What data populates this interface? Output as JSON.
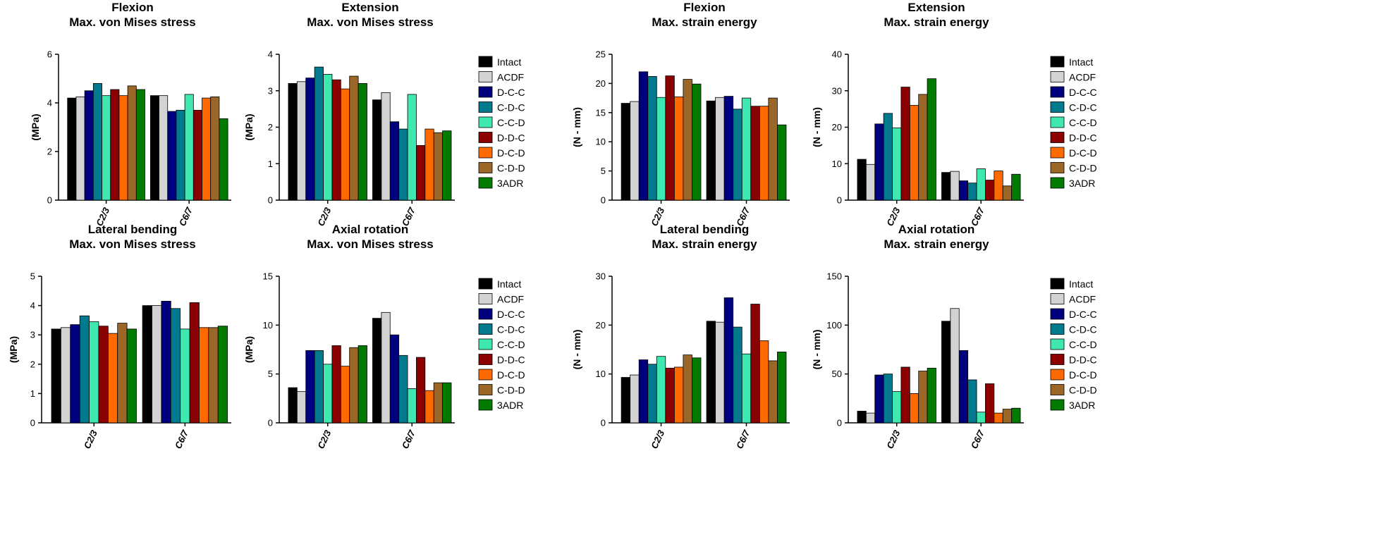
{
  "chart_data": [
    {
      "type": "bar",
      "title": "Flexion",
      "subtitle": "Max. von Mises stress",
      "ylabel": "(MPa)",
      "ylim": [
        0,
        6
      ],
      "yticks": [
        0,
        2,
        4,
        6
      ],
      "categories": [
        "C2/3",
        "C6/7"
      ],
      "legend": "none",
      "series": [
        {
          "name": "Intact",
          "values": [
            4.2,
            4.3
          ]
        },
        {
          "name": "ACDF",
          "values": [
            4.25,
            4.3
          ]
        },
        {
          "name": "D-C-C",
          "values": [
            4.5,
            3.65
          ]
        },
        {
          "name": "C-D-C",
          "values": [
            4.8,
            3.7
          ]
        },
        {
          "name": "C-C-D",
          "values": [
            4.3,
            4.35
          ]
        },
        {
          "name": "D-D-C",
          "values": [
            4.55,
            3.7
          ]
        },
        {
          "name": "D-C-D",
          "values": [
            4.3,
            4.2
          ]
        },
        {
          "name": "C-D-D",
          "values": [
            4.7,
            4.25
          ]
        },
        {
          "name": "3ADR",
          "values": [
            4.55,
            3.35
          ]
        }
      ]
    },
    {
      "type": "bar",
      "title": "Extension",
      "subtitle": "Max. von Mises stress",
      "ylabel": "(MPa)",
      "ylim": [
        0,
        4
      ],
      "yticks": [
        0,
        1,
        2,
        3,
        4
      ],
      "categories": [
        "C2/3",
        "C6/7"
      ],
      "legend": "right",
      "series": [
        {
          "name": "Intact",
          "values": [
            3.2,
            2.75
          ]
        },
        {
          "name": "ACDF",
          "values": [
            3.25,
            2.95
          ]
        },
        {
          "name": "D-C-C",
          "values": [
            3.35,
            2.15
          ]
        },
        {
          "name": "C-D-C",
          "values": [
            3.65,
            1.95
          ]
        },
        {
          "name": "C-C-D",
          "values": [
            3.45,
            2.9
          ]
        },
        {
          "name": "D-D-C",
          "values": [
            3.3,
            1.5
          ]
        },
        {
          "name": "D-C-D",
          "values": [
            3.05,
            1.95
          ]
        },
        {
          "name": "C-D-D",
          "values": [
            3.4,
            1.85
          ]
        },
        {
          "name": "3ADR",
          "values": [
            3.2,
            1.9
          ]
        }
      ]
    },
    {
      "type": "bar",
      "title": "Flexion",
      "subtitle": "Max. strain energy",
      "ylabel": "(N - mm)",
      "ylim": [
        0,
        25
      ],
      "yticks": [
        0,
        5,
        10,
        15,
        20,
        25
      ],
      "categories": [
        "C2/3",
        "C6/7"
      ],
      "legend": "none",
      "series": [
        {
          "name": "Intact",
          "values": [
            16.6,
            17.0
          ]
        },
        {
          "name": "ACDF",
          "values": [
            16.9,
            17.6
          ]
        },
        {
          "name": "D-C-C",
          "values": [
            22.0,
            17.8
          ]
        },
        {
          "name": "C-D-C",
          "values": [
            21.2,
            15.6
          ]
        },
        {
          "name": "C-C-D",
          "values": [
            17.6,
            17.5
          ]
        },
        {
          "name": "D-D-C",
          "values": [
            21.3,
            16.1
          ]
        },
        {
          "name": "D-C-D",
          "values": [
            17.7,
            16.1
          ]
        },
        {
          "name": "C-D-D",
          "values": [
            20.7,
            17.5
          ]
        },
        {
          "name": "3ADR",
          "values": [
            19.9,
            12.9
          ]
        }
      ]
    },
    {
      "type": "bar",
      "title": "Extension",
      "subtitle": "Max. strain energy",
      "ylabel": "(N - mm)",
      "ylim": [
        0,
        40
      ],
      "yticks": [
        0,
        10,
        20,
        30,
        40
      ],
      "categories": [
        "C2/3",
        "C6/7"
      ],
      "legend": "right",
      "series": [
        {
          "name": "Intact",
          "values": [
            11.2,
            7.6
          ]
        },
        {
          "name": "ACDF",
          "values": [
            9.8,
            7.9
          ]
        },
        {
          "name": "D-C-C",
          "values": [
            20.9,
            5.3
          ]
        },
        {
          "name": "C-D-C",
          "values": [
            23.8,
            4.7
          ]
        },
        {
          "name": "C-C-D",
          "values": [
            19.8,
            8.6
          ]
        },
        {
          "name": "D-D-C",
          "values": [
            31.0,
            5.5
          ]
        },
        {
          "name": "D-C-D",
          "values": [
            26.0,
            8.0
          ]
        },
        {
          "name": "C-D-D",
          "values": [
            29.0,
            3.9
          ]
        },
        {
          "name": "3ADR",
          "values": [
            33.3,
            7.1
          ]
        }
      ]
    },
    {
      "type": "bar",
      "title": "Lateral bending",
      "subtitle": "Max. von Mises stress",
      "ylabel": "(MPa)",
      "ylim": [
        0,
        5
      ],
      "yticks": [
        0,
        1,
        2,
        3,
        4,
        5
      ],
      "categories": [
        "C2/3",
        "C6/7"
      ],
      "legend": "none",
      "series": [
        {
          "name": "Intact",
          "values": [
            3.2,
            4.0
          ]
        },
        {
          "name": "ACDF",
          "values": [
            3.25,
            4.0
          ]
        },
        {
          "name": "D-C-C",
          "values": [
            3.35,
            4.15
          ]
        },
        {
          "name": "C-D-C",
          "values": [
            3.65,
            3.9
          ]
        },
        {
          "name": "C-C-D",
          "values": [
            3.45,
            3.2
          ]
        },
        {
          "name": "D-D-C",
          "values": [
            3.3,
            4.1
          ]
        },
        {
          "name": "D-C-D",
          "values": [
            3.05,
            3.25
          ]
        },
        {
          "name": "C-D-D",
          "values": [
            3.4,
            3.25
          ]
        },
        {
          "name": "3ADR",
          "values": [
            3.2,
            3.3
          ]
        }
      ]
    },
    {
      "type": "bar",
      "title": "Axial rotation",
      "subtitle": "Max. von Mises stress",
      "ylabel": "(MPa)",
      "ylim": [
        0,
        15
      ],
      "yticks": [
        0,
        5,
        10,
        15
      ],
      "categories": [
        "C2/3",
        "C6/7"
      ],
      "legend": "right",
      "series": [
        {
          "name": "Intact",
          "values": [
            3.6,
            10.7
          ]
        },
        {
          "name": "ACDF",
          "values": [
            3.2,
            11.3
          ]
        },
        {
          "name": "D-C-C",
          "values": [
            7.4,
            9.0
          ]
        },
        {
          "name": "C-D-C",
          "values": [
            7.4,
            6.9
          ]
        },
        {
          "name": "C-C-D",
          "values": [
            6.0,
            3.5
          ]
        },
        {
          "name": "D-D-C",
          "values": [
            7.9,
            6.7
          ]
        },
        {
          "name": "D-C-D",
          "values": [
            5.8,
            3.3
          ]
        },
        {
          "name": "C-D-D",
          "values": [
            7.7,
            4.1
          ]
        },
        {
          "name": "3ADR",
          "values": [
            7.9,
            4.1
          ]
        }
      ]
    },
    {
      "type": "bar",
      "title": "Lateral bending",
      "subtitle": "Max. strain energy",
      "ylabel": "(N - mm)",
      "ylim": [
        0,
        30
      ],
      "yticks": [
        0,
        10,
        20,
        30
      ],
      "categories": [
        "C2/3",
        "C6/7"
      ],
      "legend": "none",
      "series": [
        {
          "name": "Intact",
          "values": [
            9.3,
            20.8
          ]
        },
        {
          "name": "ACDF",
          "values": [
            9.8,
            20.6
          ]
        },
        {
          "name": "D-C-C",
          "values": [
            12.9,
            25.6
          ]
        },
        {
          "name": "C-D-C",
          "values": [
            12.0,
            19.6
          ]
        },
        {
          "name": "C-C-D",
          "values": [
            13.6,
            14.1
          ]
        },
        {
          "name": "D-D-C",
          "values": [
            11.2,
            24.3
          ]
        },
        {
          "name": "D-C-D",
          "values": [
            11.4,
            16.8
          ]
        },
        {
          "name": "C-D-D",
          "values": [
            13.9,
            12.7
          ]
        },
        {
          "name": "3ADR",
          "values": [
            13.3,
            14.5
          ]
        }
      ]
    },
    {
      "type": "bar",
      "title": "Axial rotation",
      "subtitle": "Max. strain energy",
      "ylabel": "(N - mm)",
      "ylim": [
        0,
        150
      ],
      "yticks": [
        0,
        50,
        100,
        150
      ],
      "categories": [
        "C2/3",
        "C6/7"
      ],
      "legend": "right",
      "series": [
        {
          "name": "Intact",
          "values": [
            12,
            104
          ]
        },
        {
          "name": "ACDF",
          "values": [
            10,
            117
          ]
        },
        {
          "name": "D-C-C",
          "values": [
            49,
            74
          ]
        },
        {
          "name": "C-D-C",
          "values": [
            50,
            44
          ]
        },
        {
          "name": "C-C-D",
          "values": [
            32,
            11
          ]
        },
        {
          "name": "D-D-C",
          "values": [
            57,
            40
          ]
        },
        {
          "name": "D-C-D",
          "values": [
            30,
            10
          ]
        },
        {
          "name": "C-D-D",
          "values": [
            53,
            14
          ]
        },
        {
          "name": "3ADR",
          "values": [
            56,
            15
          ]
        }
      ]
    }
  ],
  "legend_entries": [
    "Intact",
    "ACDF",
    "D-C-C",
    "C-D-C",
    "C-C-D",
    "D-D-C",
    "D-C-D",
    "C-D-D",
    "3ADR"
  ],
  "series_colors": [
    "#000000",
    "#d3d3d3",
    "#00007f",
    "#007a8c",
    "#3fe8b0",
    "#8b0000",
    "#ff6a00",
    "#9a6728",
    "#007a00"
  ]
}
